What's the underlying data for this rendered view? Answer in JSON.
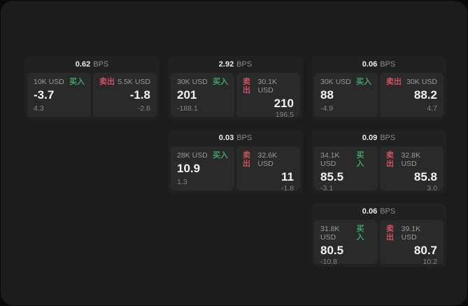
{
  "labels": {
    "bps_unit": "BPS",
    "buy": "买入",
    "sell": "卖出"
  },
  "colors": {
    "page_bg": "#1c1c1c",
    "card_bg": "#212121",
    "panel_bg": "#2a2a2a",
    "buy_green": "#3fa36c",
    "sell_red": "#cf5060"
  },
  "cards": [
    {
      "bps": "0.62",
      "buy": {
        "amount": "10K USD",
        "price": "-3.7",
        "sub": "4.3"
      },
      "sell": {
        "amount": "5.5K USD",
        "price": "-1.8",
        "sub": "-2.6"
      }
    },
    {
      "bps": "2.92",
      "buy": {
        "amount": "30K USD",
        "price": "201",
        "sub": "-188.1"
      },
      "sell": {
        "amount": "30.1K USD",
        "price": "210",
        "sub": "196.5"
      }
    },
    {
      "bps": "0.03",
      "buy": {
        "amount": "28K USD",
        "price": "10.9",
        "sub": "1.3"
      },
      "sell": {
        "amount": "32.6K USD",
        "price": "11",
        "sub": "-1.8"
      }
    },
    {
      "bps": "0.06",
      "buy": {
        "amount": "30K USD",
        "price": "88",
        "sub": "-4.9"
      },
      "sell": {
        "amount": "30K USD",
        "price": "88.2",
        "sub": "4.7"
      }
    },
    {
      "bps": "0.09",
      "buy": {
        "amount": "34.1K USD",
        "price": "85.5",
        "sub": "-3.1"
      },
      "sell": {
        "amount": "32.8K USD",
        "price": "85.8",
        "sub": "3.0"
      }
    },
    {
      "bps": "0.06",
      "buy": {
        "amount": "31.8K USD",
        "price": "80.5",
        "sub": "-10.8"
      },
      "sell": {
        "amount": "39.1K USD",
        "price": "80.7",
        "sub": "10.2"
      }
    }
  ]
}
